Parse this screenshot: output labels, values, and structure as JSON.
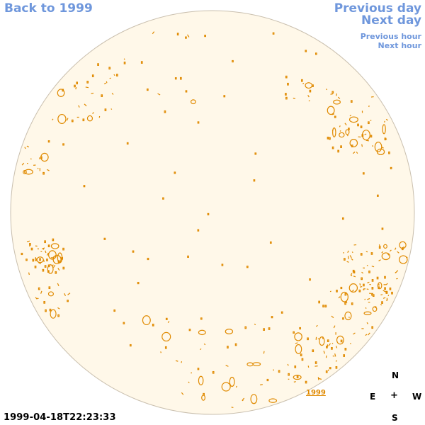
{
  "nav": {
    "back_label": "Back to 1999",
    "prev_day_label": "Previous day",
    "next_day_label": "Next day",
    "prev_hour_label": "Previous hour",
    "next_hour_label": "Next hour"
  },
  "timestamp": "1999-04-18T22:23:33",
  "compass": {
    "north": "N",
    "south": "S",
    "east": "E",
    "west": "W",
    "center": "+"
  },
  "year_label": "1999",
  "colors": {
    "link": "#6f97dc",
    "disk_fill": "#fff8e9",
    "disk_edge": "#c9bfae",
    "contour": "#e08a00"
  }
}
